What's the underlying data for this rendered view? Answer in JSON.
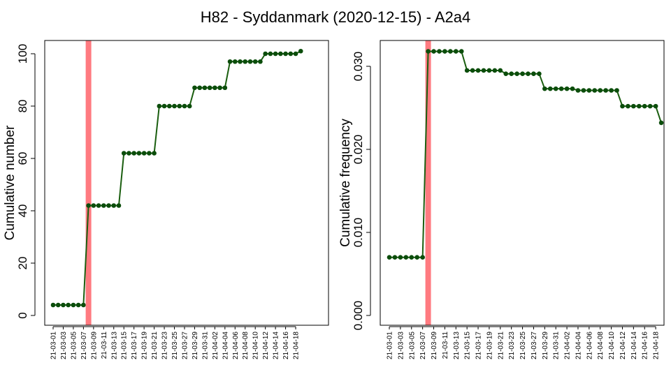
{
  "title": "H82 - Syddanmark (2020-12-15) - A2a4",
  "colors": {
    "line": "#1a5e0f",
    "point": "#0b4d0b",
    "highlight": "#ff7a80",
    "frame": "#000000"
  },
  "x_tick_labels": [
    "21-03-01",
    "21-03-03",
    "21-03-05",
    "21-03-07",
    "21-03-09",
    "21-03-11",
    "21-03-13",
    "21-03-15",
    "21-03-17",
    "21-03-19",
    "21-03-21",
    "21-03-23",
    "21-03-25",
    "21-03-27",
    "21-03-29",
    "21-03-31",
    "21-04-02",
    "21-04-04",
    "21-04-06",
    "21-04-08",
    "21-04-10",
    "21-04-12",
    "21-04-14",
    "21-04-16",
    "21-04-18"
  ],
  "chart_data": [
    {
      "type": "line",
      "ylabel": "Cumulative number",
      "ylim": [
        0,
        100
      ],
      "yticks": [
        0,
        20,
        40,
        60,
        80,
        100
      ],
      "ytick_labels": [
        "0",
        "20",
        "40",
        "60",
        "80",
        "100"
      ],
      "highlight_x": "21-03-08",
      "x": [
        "21-03-01",
        "21-03-02",
        "21-03-03",
        "21-03-04",
        "21-03-05",
        "21-03-06",
        "21-03-07",
        "21-03-08",
        "21-03-09",
        "21-03-10",
        "21-03-11",
        "21-03-12",
        "21-03-13",
        "21-03-14",
        "21-03-15",
        "21-03-16",
        "21-03-17",
        "21-03-18",
        "21-03-19",
        "21-03-20",
        "21-03-21",
        "21-03-22",
        "21-03-23",
        "21-03-24",
        "21-03-25",
        "21-03-26",
        "21-03-27",
        "21-03-28",
        "21-03-29",
        "21-03-30",
        "21-03-31",
        "21-04-01",
        "21-04-02",
        "21-04-03",
        "21-04-04",
        "21-04-05",
        "21-04-06",
        "21-04-07",
        "21-04-08",
        "21-04-09",
        "21-04-10",
        "21-04-11",
        "21-04-12",
        "21-04-13",
        "21-04-14",
        "21-04-15",
        "21-04-16",
        "21-04-17",
        "21-04-18",
        "21-04-19"
      ],
      "series": [
        {
          "values": [
            4,
            4,
            4,
            4,
            4,
            4,
            4,
            42,
            42,
            42,
            42,
            42,
            42,
            42,
            62,
            62,
            62,
            62,
            62,
            62,
            62,
            80,
            80,
            80,
            80,
            80,
            80,
            80,
            87,
            87,
            87,
            87,
            87,
            87,
            87,
            97,
            97,
            97,
            97,
            97,
            97,
            97,
            100,
            100,
            100,
            100,
            100,
            100,
            100,
            101
          ]
        }
      ]
    },
    {
      "type": "line",
      "ylabel": "Cumulative frequency",
      "ylim": [
        0,
        0.03
      ],
      "yticks": [
        0,
        0.01,
        0.02,
        0.03
      ],
      "ytick_labels": [
        "0.000",
        "0.010",
        "0.020",
        "0.030"
      ],
      "highlight_x": "21-03-08",
      "x": [
        "21-03-01",
        "21-03-02",
        "21-03-03",
        "21-03-04",
        "21-03-05",
        "21-03-06",
        "21-03-07",
        "21-03-08",
        "21-03-09",
        "21-03-10",
        "21-03-11",
        "21-03-12",
        "21-03-13",
        "21-03-14",
        "21-03-15",
        "21-03-16",
        "21-03-17",
        "21-03-18",
        "21-03-19",
        "21-03-20",
        "21-03-21",
        "21-03-22",
        "21-03-23",
        "21-03-24",
        "21-03-25",
        "21-03-26",
        "21-03-27",
        "21-03-28",
        "21-03-29",
        "21-03-30",
        "21-03-31",
        "21-04-01",
        "21-04-02",
        "21-04-03",
        "21-04-04",
        "21-04-05",
        "21-04-06",
        "21-04-07",
        "21-04-08",
        "21-04-09",
        "21-04-10",
        "21-04-11",
        "21-04-12",
        "21-04-13",
        "21-04-14",
        "21-04-15",
        "21-04-16",
        "21-04-17",
        "21-04-18",
        "21-04-19"
      ],
      "series": [
        {
          "values": [
            0.007,
            0.007,
            0.007,
            0.007,
            0.007,
            0.007,
            0.007,
            0.0318,
            0.0318,
            0.0318,
            0.0318,
            0.0318,
            0.0318,
            0.0318,
            0.0295,
            0.0295,
            0.0295,
            0.0295,
            0.0295,
            0.0295,
            0.0295,
            0.0291,
            0.0291,
            0.0291,
            0.0291,
            0.0291,
            0.0291,
            0.0291,
            0.0273,
            0.0273,
            0.0273,
            0.0273,
            0.0273,
            0.0273,
            0.0271,
            0.0271,
            0.0271,
            0.0271,
            0.0271,
            0.0271,
            0.0271,
            0.0271,
            0.0252,
            0.0252,
            0.0252,
            0.0252,
            0.0252,
            0.0252,
            0.0252,
            0.0232
          ]
        }
      ]
    }
  ]
}
